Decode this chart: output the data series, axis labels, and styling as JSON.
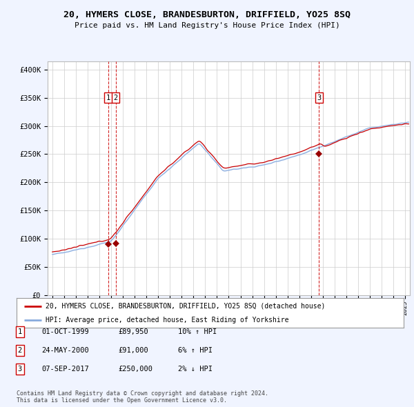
{
  "title": "20, HYMERS CLOSE, BRANDESBURTON, DRIFFIELD, YO25 8SQ",
  "subtitle": "Price paid vs. HM Land Registry's House Price Index (HPI)",
  "yticks": [
    0,
    50000,
    100000,
    150000,
    200000,
    250000,
    300000,
    350000,
    400000
  ],
  "ytick_labels": [
    "£0",
    "£50K",
    "£100K",
    "£150K",
    "£200K",
    "£250K",
    "£300K",
    "£350K",
    "£400K"
  ],
  "xlim_start": 1994.6,
  "xlim_end": 2025.4,
  "ylim_min": 0,
  "ylim_max": 415000,
  "line_color_price": "#cc0000",
  "line_color_hpi": "#88aadd",
  "fill_color": "#ddeeff",
  "legend_label_price": "20, HYMERS CLOSE, BRANDESBURTON, DRIFFIELD, YO25 8SQ (detached house)",
  "legend_label_hpi": "HPI: Average price, detached house, East Riding of Yorkshire",
  "sale_points": [
    {
      "date_num": 1999.75,
      "price": 89950,
      "label": "1"
    },
    {
      "date_num": 2000.38,
      "price": 91000,
      "label": "2"
    },
    {
      "date_num": 2017.67,
      "price": 250000,
      "label": "3"
    }
  ],
  "table_rows": [
    {
      "num": "1",
      "date": "01-OCT-1999",
      "price": "£89,950",
      "hpi": "10% ↑ HPI"
    },
    {
      "num": "2",
      "date": "24-MAY-2000",
      "price": "£91,000",
      "hpi": "6% ↑ HPI"
    },
    {
      "num": "3",
      "date": "07-SEP-2017",
      "price": "£250,000",
      "hpi": "2% ↓ HPI"
    }
  ],
  "footer": "Contains HM Land Registry data © Crown copyright and database right 2024.\nThis data is licensed under the Open Government Licence v3.0.",
  "background_color": "#f0f4ff",
  "plot_bg_color": "#ffffff",
  "grid_color": "#cccccc"
}
